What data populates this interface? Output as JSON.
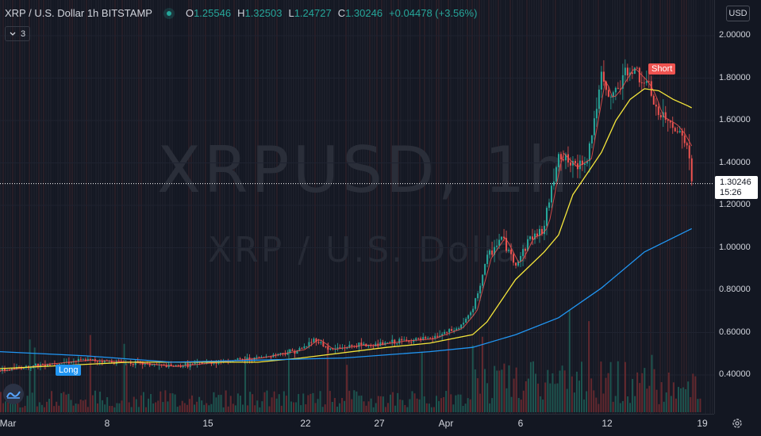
{
  "header": {
    "symbol": "XRP / U.S. Dollar",
    "interval": "1h",
    "exchange": "BITSTAMP",
    "ohlc": {
      "open_label": "O",
      "open": "1.25546",
      "high_label": "H",
      "high": "1.32503",
      "low_label": "L",
      "low": "1.24727",
      "close_label": "C",
      "close": "1.30246",
      "change": "+0.04478 (+3.56%)"
    },
    "indicator_count": "3"
  },
  "watermark": {
    "ticker": "XRPUSD, 1h",
    "name": "XRP / U.S. Dollar"
  },
  "price_axis": {
    "currency_button": "USD",
    "ticks": [
      "2.00000",
      "1.80000",
      "1.60000",
      "1.40000",
      "1.20000",
      "1.00000",
      "0.80000",
      "0.60000",
      "0.40000"
    ],
    "last_price": "1.30246",
    "countdown": "15:26"
  },
  "time_axis": {
    "ticks": [
      "Mar",
      "8",
      "15",
      "22",
      "27",
      "Apr",
      "6",
      "12",
      "19"
    ]
  },
  "annotations": {
    "short": "Short",
    "long": "Long"
  },
  "colors": {
    "background": "#131722",
    "up": "#26a69a",
    "down": "#ef5350",
    "ma_fast": "#ef5350",
    "ma_mid": "#f5e63b",
    "ma_slow": "#2196f3"
  },
  "chart_data": {
    "type": "line",
    "title": "XRP / U.S. Dollar, 1h, BITSTAMP",
    "ylim": [
      0.3,
      2.1
    ],
    "x_ticks": [
      "Mar",
      "8",
      "15",
      "22",
      "27",
      "Apr",
      "6",
      "12",
      "19"
    ],
    "series": [
      {
        "name": "XRPUSD close",
        "x": [
          0,
          3,
          6,
          9,
          12,
          15,
          18,
          21,
          22,
          23,
          24,
          25,
          26,
          28,
          30,
          32,
          33,
          34,
          35,
          36,
          36.5,
          37,
          37.5,
          38,
          39,
          40,
          40.5,
          41,
          42,
          42.5,
          43,
          44,
          45,
          45.5,
          46,
          47,
          47.5,
          48,
          48.3
        ],
        "values": [
          0.42,
          0.45,
          0.47,
          0.46,
          0.44,
          0.46,
          0.48,
          0.52,
          0.57,
          0.52,
          0.53,
          0.54,
          0.54,
          0.56,
          0.57,
          0.62,
          0.7,
          0.95,
          1.05,
          0.92,
          0.98,
          1.05,
          1.06,
          1.1,
          1.45,
          1.38,
          1.4,
          1.42,
          1.8,
          1.7,
          1.74,
          1.85,
          1.78,
          1.72,
          1.62,
          1.58,
          1.54,
          1.48,
          1.3
        ]
      },
      {
        "name": "MA (yellow)",
        "x": [
          0,
          9,
          18,
          21,
          27,
          30,
          33,
          34,
          36,
          38,
          39,
          40,
          41,
          42,
          43,
          44,
          45,
          46,
          47,
          48,
          48.3
        ],
        "values": [
          0.43,
          0.46,
          0.46,
          0.48,
          0.53,
          0.55,
          0.59,
          0.65,
          0.85,
          0.98,
          1.06,
          1.25,
          1.35,
          1.45,
          1.6,
          1.7,
          1.75,
          1.74,
          1.7,
          1.67,
          1.66
        ]
      },
      {
        "name": "MA (blue)",
        "x": [
          0,
          6,
          12,
          18,
          24,
          30,
          33,
          36,
          39,
          42,
          45,
          48,
          48.3
        ],
        "values": [
          0.51,
          0.49,
          0.46,
          0.47,
          0.48,
          0.51,
          0.53,
          0.59,
          0.67,
          0.81,
          0.98,
          1.08,
          1.09
        ]
      }
    ]
  }
}
